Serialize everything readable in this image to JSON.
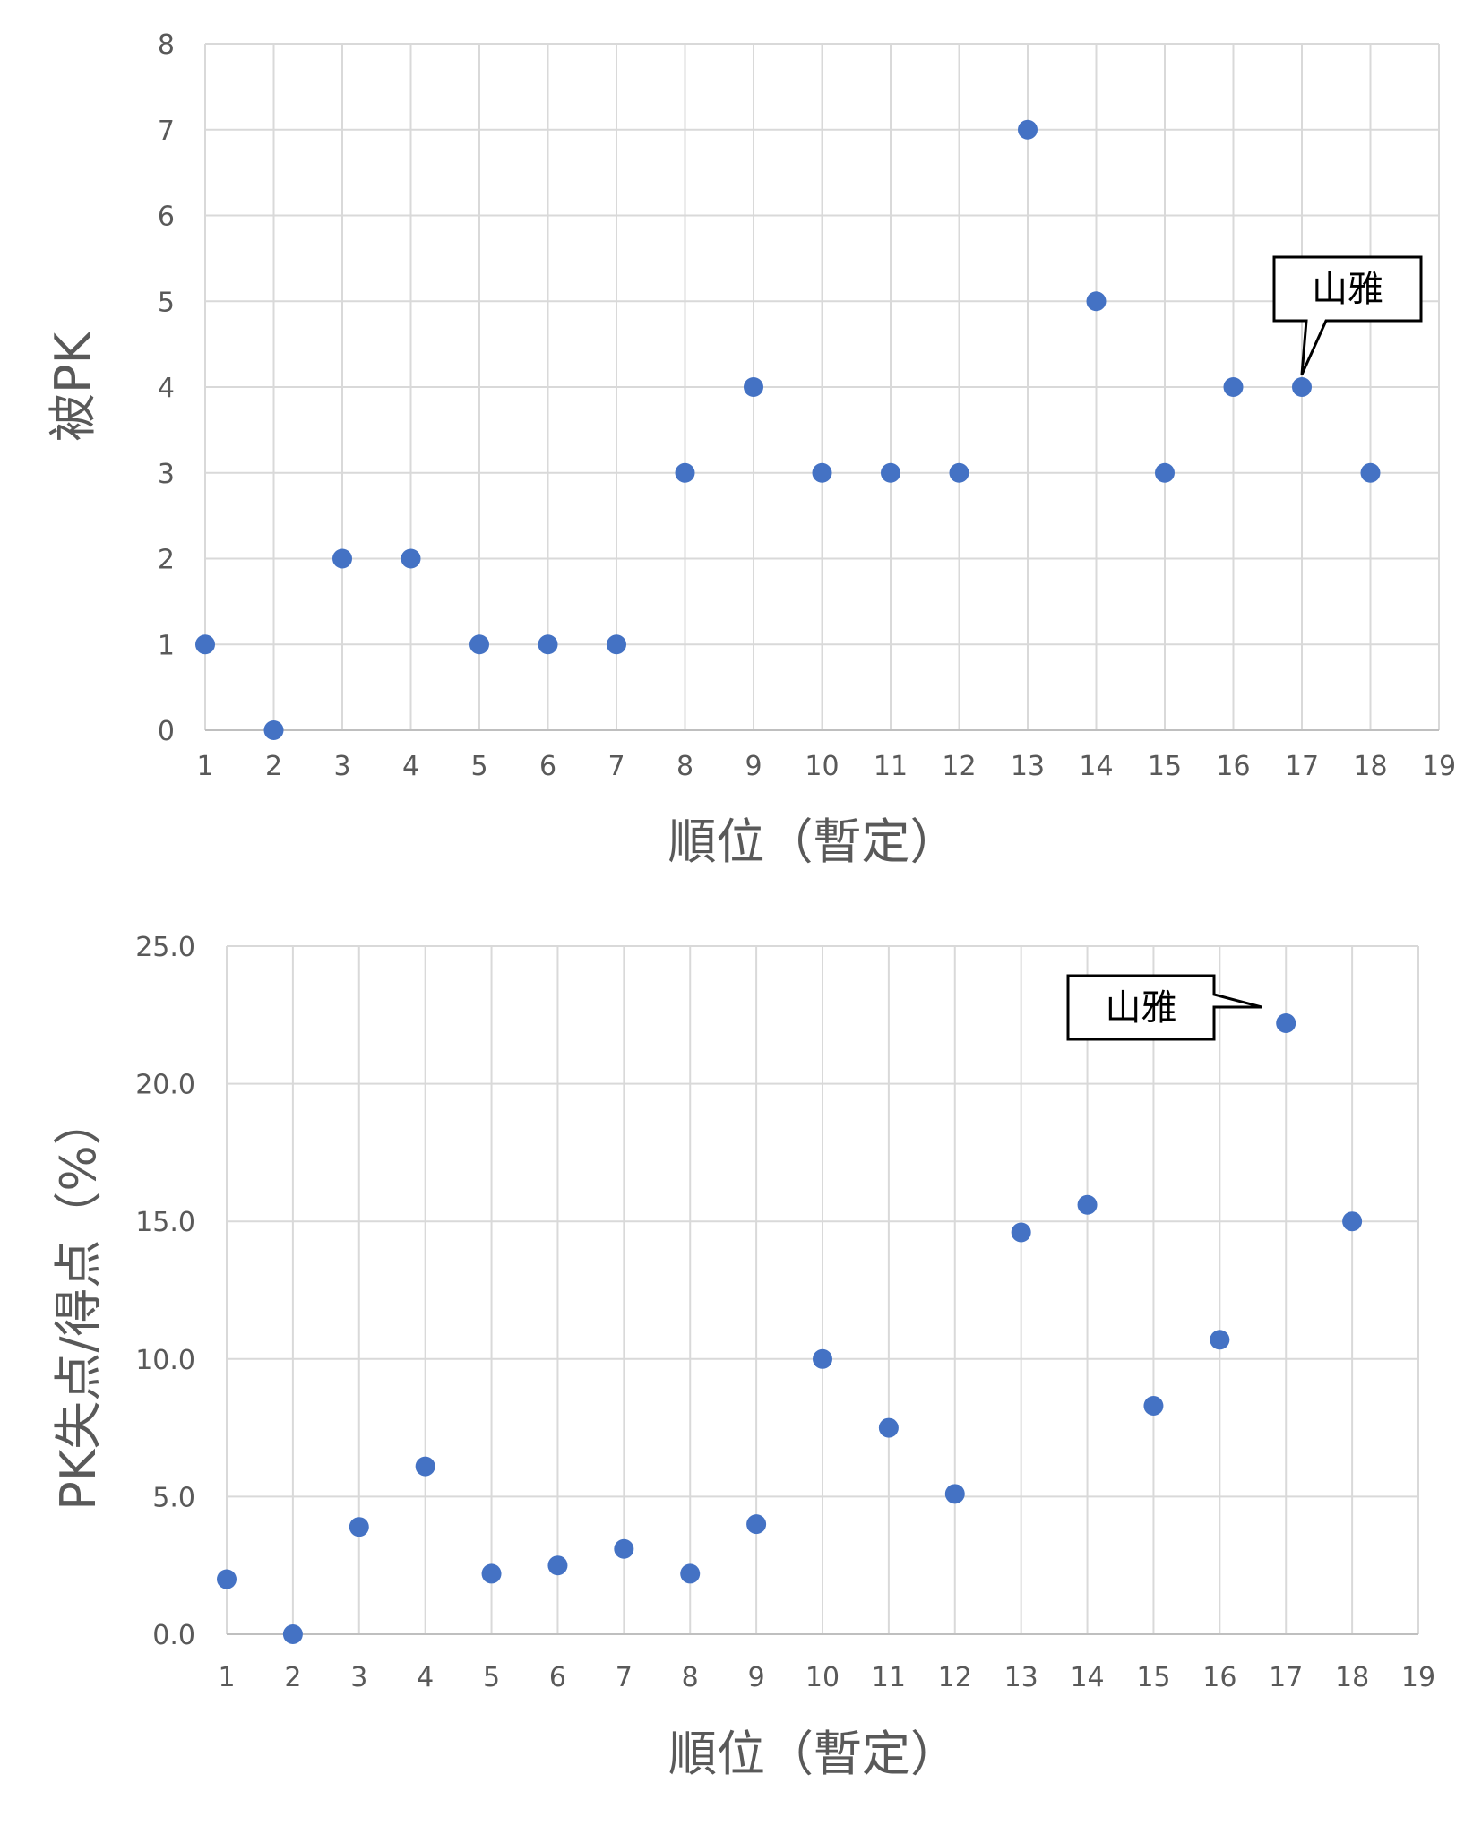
{
  "chart_data": [
    {
      "type": "scatter",
      "title": "",
      "xlabel": "順位（暫定）",
      "ylabel": "被PK",
      "xlim": [
        1,
        19
      ],
      "ylim": [
        0,
        8
      ],
      "x_ticks": [
        "1",
        "2",
        "3",
        "4",
        "5",
        "6",
        "7",
        "8",
        "9",
        "10",
        "11",
        "12",
        "13",
        "14",
        "15",
        "16",
        "17",
        "18",
        "19"
      ],
      "y_ticks": [
        "0",
        "1",
        "2",
        "3",
        "4",
        "5",
        "6",
        "7",
        "8"
      ],
      "grid": true,
      "series": [
        {
          "color": "#4472C4",
          "x": [
            1,
            2,
            3,
            4,
            5,
            6,
            7,
            8,
            9,
            10,
            11,
            12,
            13,
            14,
            15,
            16,
            17,
            18
          ],
          "y": [
            1,
            0,
            2,
            2,
            1,
            1,
            1,
            3,
            4,
            3,
            3,
            3,
            7,
            5,
            3,
            4,
            4,
            3
          ]
        }
      ],
      "annotation": {
        "text": "山雅",
        "x": 17,
        "y": 4
      }
    },
    {
      "type": "scatter",
      "title": "",
      "xlabel": "順位（暫定）",
      "ylabel": "PK失点/得点（%）",
      "xlim": [
        1,
        19
      ],
      "ylim": [
        0,
        25
      ],
      "x_ticks": [
        "1",
        "2",
        "3",
        "4",
        "5",
        "6",
        "7",
        "8",
        "9",
        "10",
        "11",
        "12",
        "13",
        "14",
        "15",
        "16",
        "17",
        "18",
        "19"
      ],
      "y_ticks": [
        "0.0",
        "5.0",
        "10.0",
        "15.0",
        "20.0",
        "25.0"
      ],
      "grid": true,
      "series": [
        {
          "color": "#4472C4",
          "x": [
            1,
            2,
            3,
            4,
            5,
            6,
            7,
            8,
            9,
            10,
            11,
            12,
            13,
            14,
            15,
            16,
            17,
            18
          ],
          "y": [
            2.0,
            0.0,
            3.9,
            6.1,
            2.2,
            2.5,
            3.1,
            2.2,
            4.0,
            10.0,
            7.5,
            5.1,
            14.6,
            15.6,
            8.3,
            10.7,
            22.2,
            15.0
          ]
        }
      ],
      "annotation": {
        "text": "山雅",
        "x": 17,
        "y": 22.2
      }
    }
  ]
}
